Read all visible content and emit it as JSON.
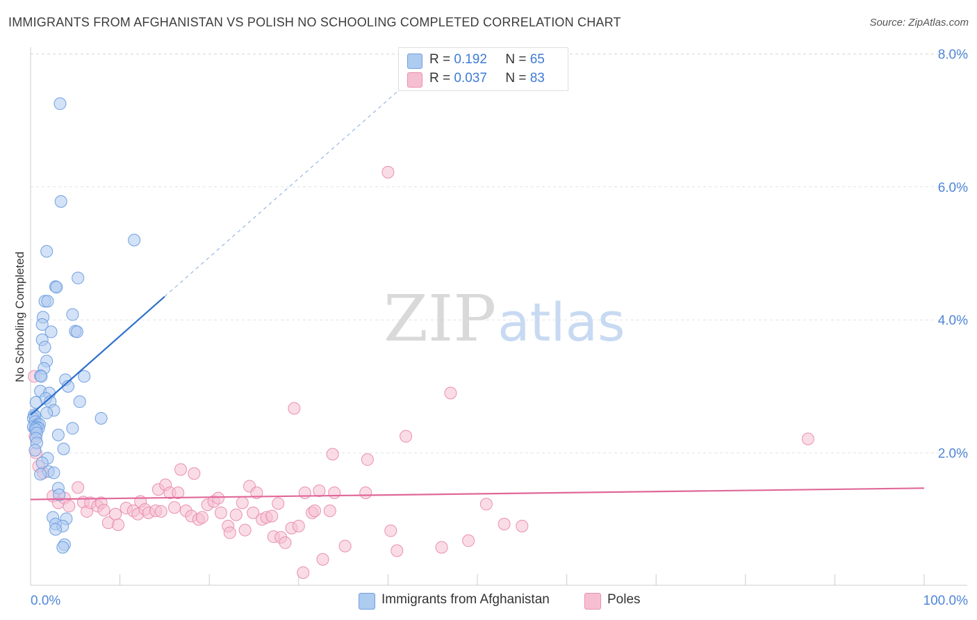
{
  "header": {
    "title": "IMMIGRANTS FROM AFGHANISTAN VS POLISH NO SCHOOLING COMPLETED CORRELATION CHART",
    "source": "Source: ZipAtlas.com"
  },
  "watermark": {
    "zip": "ZIP",
    "atlas": "atlas"
  },
  "legend": {
    "r_label": "R =",
    "n_label": "N =",
    "rows": [
      {
        "r": "0.192",
        "n": "65"
      },
      {
        "r": "0.037",
        "n": "83"
      }
    ]
  },
  "colors": {
    "blue_fill": "#aecbf0",
    "blue_stroke": "#6f9fe0",
    "blue_line": "#2e6fcc",
    "pink_fill": "#f6bfd1",
    "pink_stroke": "#e98fb0",
    "pink_line": "#e0679a",
    "grid": "#e3e3e3",
    "axis_label": "#4f86d6"
  },
  "chart_data": {
    "type": "scatter",
    "title": "IMMIGRANTS FROM AFGHANISTAN VS POLISH NO SCHOOLING COMPLETED CORRELATION CHART",
    "xlabel": "",
    "ylabel": "No Schooling Completed",
    "xlim": [
      0,
      100
    ],
    "ylim": [
      0,
      8.6
    ],
    "x_tick_labels": [
      "0.0%",
      "100.0%"
    ],
    "y_ticks": [
      2,
      4,
      6,
      8
    ],
    "y_tick_labels": [
      "2.0%",
      "4.0%",
      "6.0%",
      "8.0%"
    ],
    "grid": true,
    "legend_position": "top-center",
    "series": [
      {
        "name": "Immigrants from Afghanistan",
        "color": "#6f9fe0",
        "r": 0.192,
        "n": 65,
        "trend": {
          "x": [
            0,
            15
          ],
          "y": [
            2.57,
            4.35
          ],
          "dashed_to": [
            45,
            7.9
          ]
        },
        "points": [
          [
            3.3,
            7.25
          ],
          [
            3.4,
            5.78
          ],
          [
            1.8,
            5.03
          ],
          [
            11.6,
            5.2
          ],
          [
            5.3,
            4.63
          ],
          [
            2.8,
            4.5
          ],
          [
            2.9,
            4.49
          ],
          [
            1.6,
            4.28
          ],
          [
            1.9,
            4.28
          ],
          [
            4.7,
            4.08
          ],
          [
            1.4,
            4.04
          ],
          [
            1.3,
            3.93
          ],
          [
            2.3,
            3.82
          ],
          [
            5.0,
            3.83
          ],
          [
            5.2,
            3.82
          ],
          [
            1.3,
            3.7
          ],
          [
            1.6,
            3.59
          ],
          [
            1.8,
            3.38
          ],
          [
            1.5,
            3.27
          ],
          [
            1.1,
            3.16
          ],
          [
            1.2,
            3.15
          ],
          [
            3.9,
            3.1
          ],
          [
            6.0,
            3.15
          ],
          [
            4.2,
            3.0
          ],
          [
            1.1,
            2.93
          ],
          [
            2.1,
            2.9
          ],
          [
            1.7,
            2.82
          ],
          [
            0.6,
            2.76
          ],
          [
            2.2,
            2.77
          ],
          [
            5.5,
            2.77
          ],
          [
            2.6,
            2.64
          ],
          [
            1.8,
            2.6
          ],
          [
            0.4,
            2.57
          ],
          [
            0.5,
            2.55
          ],
          [
            0.3,
            2.52
          ],
          [
            7.9,
            2.52
          ],
          [
            0.5,
            2.47
          ],
          [
            0.8,
            2.43
          ],
          [
            1.0,
            2.43
          ],
          [
            0.3,
            2.39
          ],
          [
            0.7,
            2.39
          ],
          [
            0.5,
            2.37
          ],
          [
            0.9,
            2.37
          ],
          [
            0.6,
            2.35
          ],
          [
            4.7,
            2.37
          ],
          [
            0.7,
            2.3
          ],
          [
            3.1,
            2.27
          ],
          [
            0.6,
            2.22
          ],
          [
            0.7,
            2.15
          ],
          [
            3.7,
            2.06
          ],
          [
            0.5,
            2.04
          ],
          [
            1.9,
            1.92
          ],
          [
            1.3,
            1.85
          ],
          [
            2.0,
            1.72
          ],
          [
            2.6,
            1.7
          ],
          [
            1.1,
            1.68
          ],
          [
            3.1,
            1.47
          ],
          [
            3.2,
            1.37
          ],
          [
            2.5,
            1.03
          ],
          [
            4.0,
            1.01
          ],
          [
            2.8,
            0.93
          ],
          [
            3.6,
            0.9
          ],
          [
            2.8,
            0.85
          ],
          [
            3.8,
            0.62
          ],
          [
            3.6,
            0.58
          ]
        ]
      },
      {
        "name": "Poles",
        "color": "#e98fb0",
        "r": 0.037,
        "n": 83,
        "trend": {
          "x": [
            0,
            100
          ],
          "y": [
            1.3,
            1.47
          ]
        },
        "points": [
          [
            0.4,
            3.15
          ],
          [
            0.5,
            2.25
          ],
          [
            0.6,
            2.0
          ],
          [
            0.9,
            1.8
          ],
          [
            1.4,
            1.7
          ],
          [
            2.5,
            1.35
          ],
          [
            3.1,
            1.25
          ],
          [
            5.3,
            1.48
          ],
          [
            3.8,
            1.32
          ],
          [
            4.3,
            1.2
          ],
          [
            5.9,
            1.26
          ],
          [
            6.3,
            1.12
          ],
          [
            6.7,
            1.25
          ],
          [
            7.5,
            1.2
          ],
          [
            7.9,
            1.25
          ],
          [
            8.2,
            1.14
          ],
          [
            8.7,
            0.95
          ],
          [
            9.5,
            1.08
          ],
          [
            9.8,
            0.92
          ],
          [
            10.7,
            1.17
          ],
          [
            11.5,
            1.13
          ],
          [
            12.0,
            1.08
          ],
          [
            12.3,
            1.27
          ],
          [
            12.8,
            1.15
          ],
          [
            13.2,
            1.1
          ],
          [
            14.0,
            1.13
          ],
          [
            14.6,
            1.12
          ],
          [
            14.3,
            1.45
          ],
          [
            15.1,
            1.52
          ],
          [
            15.6,
            1.4
          ],
          [
            16.1,
            1.18
          ],
          [
            16.5,
            1.4
          ],
          [
            16.8,
            1.75
          ],
          [
            17.4,
            1.13
          ],
          [
            18.0,
            1.05
          ],
          [
            18.3,
            1.69
          ],
          [
            18.8,
            1.0
          ],
          [
            19.2,
            1.03
          ],
          [
            19.8,
            1.22
          ],
          [
            20.5,
            1.27
          ],
          [
            21.0,
            1.32
          ],
          [
            21.3,
            1.1
          ],
          [
            22.1,
            0.9
          ],
          [
            22.3,
            0.8
          ],
          [
            23.0,
            1.07
          ],
          [
            23.7,
            1.25
          ],
          [
            24.0,
            0.84
          ],
          [
            24.5,
            1.5
          ],
          [
            24.9,
            1.1
          ],
          [
            25.3,
            1.4
          ],
          [
            25.9,
            1.0
          ],
          [
            26.4,
            1.03
          ],
          [
            27.0,
            1.05
          ],
          [
            27.2,
            0.74
          ],
          [
            27.7,
            1.24
          ],
          [
            28.0,
            0.73
          ],
          [
            28.5,
            0.65
          ],
          [
            29.2,
            0.87
          ],
          [
            29.5,
            2.67
          ],
          [
            30.0,
            0.9
          ],
          [
            30.5,
            0.2
          ],
          [
            30.7,
            1.4
          ],
          [
            31.5,
            1.1
          ],
          [
            31.8,
            1.13
          ],
          [
            32.3,
            1.43
          ],
          [
            32.7,
            0.4
          ],
          [
            33.5,
            1.13
          ],
          [
            33.8,
            1.98
          ],
          [
            34.0,
            1.4
          ],
          [
            35.2,
            0.6
          ],
          [
            37.5,
            1.4
          ],
          [
            37.7,
            1.9
          ],
          [
            40.3,
            0.83
          ],
          [
            40.0,
            6.22
          ],
          [
            41.0,
            0.53
          ],
          [
            42.0,
            2.25
          ],
          [
            46.0,
            0.58
          ],
          [
            47.0,
            2.9
          ],
          [
            49.0,
            0.68
          ],
          [
            51.0,
            1.23
          ],
          [
            53.0,
            0.93
          ],
          [
            55.0,
            0.9
          ],
          [
            87.0,
            2.21
          ]
        ]
      }
    ]
  },
  "bottom_legend": [
    {
      "label": "Immigrants from Afghanistan"
    },
    {
      "label": "Poles"
    }
  ]
}
